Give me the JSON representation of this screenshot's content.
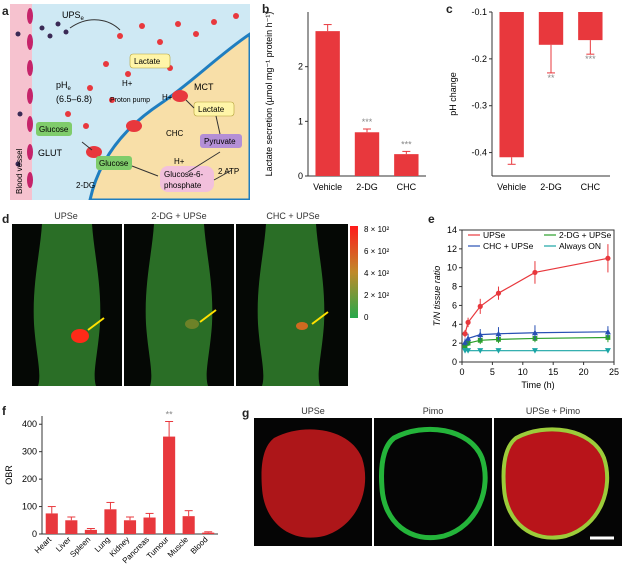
{
  "panels": {
    "a": {
      "label": "a",
      "ups": "UPS",
      "ups_sub": "e",
      "phe": "pH",
      "phe_sub": "e",
      "phe_range": "(6.5–6.8)",
      "blood_vessel": "Blood vessel",
      "glut": "GLUT",
      "mct": "MCT",
      "chc": "CHC",
      "proton_pump": "Proton pump",
      "hplus": "H+",
      "lactate": "Lactate",
      "glucose": "Glucose",
      "twodg": "2-DG",
      "pyruvate": "Pyruvate",
      "g6p_line1": "Glucose-6-",
      "g6p_line2": "phosphate",
      "atp": "2 ATP"
    },
    "b": {
      "label": "b"
    },
    "c": {
      "label": "c"
    },
    "d": {
      "label": "d",
      "titles": [
        "UPSe",
        "2-DG + UPSe",
        "CHC + UPSe"
      ],
      "colorbar_ticks": [
        "8 × 10²",
        "6 × 10²",
        "4 × 10²",
        "2 × 10²",
        "0"
      ]
    },
    "e": {
      "label": "e"
    },
    "f": {
      "label": "f"
    },
    "g": {
      "label": "g",
      "titles": [
        "UPSe",
        "Pimo",
        "UPSe + Pimo"
      ]
    }
  },
  "chart_data": [
    {
      "panel": "b",
      "type": "bar",
      "categories": [
        "Vehicle",
        "2-DG",
        "CHC"
      ],
      "values": [
        2.65,
        0.8,
        0.4
      ],
      "errors": [
        0.12,
        0.06,
        0.05
      ],
      "significance": [
        "",
        "***",
        "***"
      ],
      "ylabel": "Lactate secretion (µmol mg⁻¹ protein h⁻¹)",
      "ylim": [
        0,
        3
      ],
      "yticks": [
        0,
        1,
        2
      ],
      "color": "#e8383d"
    },
    {
      "panel": "c",
      "type": "bar",
      "categories": [
        "Vehicle",
        "2-DG",
        "CHC"
      ],
      "values": [
        -0.41,
        -0.17,
        -0.16
      ],
      "errors": [
        0.015,
        0.06,
        0.03
      ],
      "significance": [
        "",
        "**",
        "***"
      ],
      "ylabel": "pH change",
      "ylim": [
        -0.45,
        -0.1
      ],
      "yticks": [
        -0.1,
        -0.2,
        -0.3,
        -0.4
      ],
      "color": "#e8383d"
    },
    {
      "panel": "e",
      "type": "line",
      "xlabel": "Time (h)",
      "ylabel": "T/N tissue ratio",
      "xlim": [
        0,
        25
      ],
      "ylim": [
        0,
        14
      ],
      "xticks": [
        0,
        5,
        10,
        15,
        20,
        25
      ],
      "yticks": [
        0,
        2,
        4,
        6,
        8,
        10,
        12,
        14
      ],
      "legend_position": "top",
      "series": [
        {
          "name": "UPSe",
          "color": "#e8383d",
          "marker": "circle",
          "x": [
            0.5,
            1,
            3,
            6,
            12,
            24
          ],
          "y": [
            3.0,
            4.2,
            5.9,
            7.3,
            9.5,
            11.0
          ],
          "err": [
            0.4,
            0.5,
            0.8,
            0.7,
            1.2,
            1.5
          ]
        },
        {
          "name": "2-DG + UPSe",
          "color": "#2ca02c",
          "marker": "square",
          "x": [
            0.5,
            1,
            3,
            6,
            12,
            24
          ],
          "y": [
            1.7,
            2.0,
            2.3,
            2.4,
            2.5,
            2.6
          ],
          "err": [
            0.3,
            0.3,
            0.4,
            0.4,
            0.4,
            0.5
          ]
        },
        {
          "name": "CHC + UPSe",
          "color": "#2850b4",
          "marker": "triangle",
          "x": [
            0.5,
            1,
            3,
            6,
            12,
            24
          ],
          "y": [
            2.1,
            2.5,
            2.9,
            3.0,
            3.1,
            3.2
          ],
          "err": [
            0.4,
            0.5,
            0.6,
            0.7,
            0.8,
            0.6
          ]
        },
        {
          "name": "Always ON",
          "color": "#1aa5a5",
          "marker": "triangle-down",
          "x": [
            0.5,
            1,
            3,
            6,
            12,
            24
          ],
          "y": [
            1.2,
            1.2,
            1.2,
            1.2,
            1.2,
            1.2
          ],
          "err": [
            0.2,
            0.2,
            0.2,
            0.2,
            0.2,
            0.2
          ]
        }
      ]
    },
    {
      "panel": "f",
      "type": "bar",
      "categories": [
        "Heart",
        "Liver",
        "Spleen",
        "Lung",
        "Kidney",
        "Pancreas",
        "Tumour",
        "Muscle",
        "Blood"
      ],
      "values": [
        75,
        50,
        15,
        90,
        50,
        60,
        355,
        65,
        5
      ],
      "errors": [
        25,
        12,
        5,
        25,
        12,
        15,
        55,
        20,
        3
      ],
      "significance": [
        "",
        "",
        "",
        "",
        "",
        "",
        "**",
        "",
        ""
      ],
      "ylabel": "OBR",
      "ylim": [
        0,
        430
      ],
      "yticks": [
        0,
        100,
        200,
        300,
        400
      ],
      "color": "#e8383d"
    }
  ]
}
